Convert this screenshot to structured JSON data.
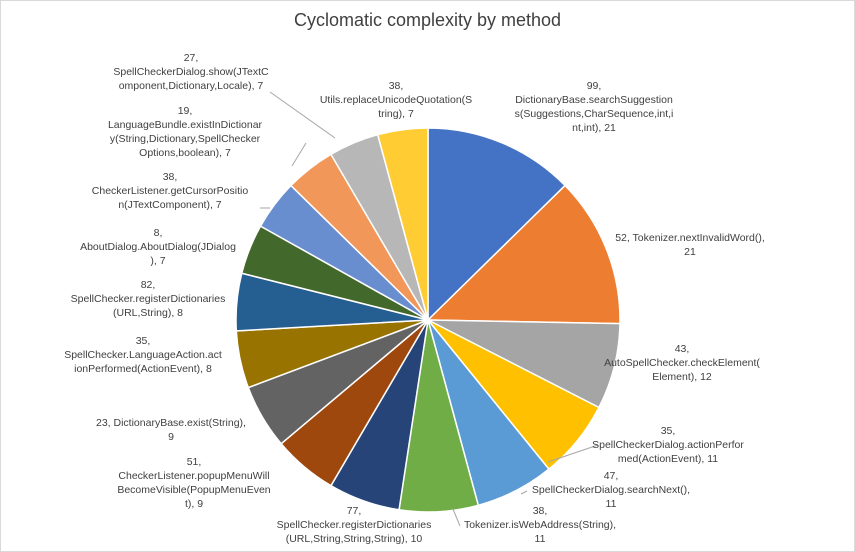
{
  "chart_data": {
    "type": "pie",
    "title": "Cyclomatic complexity by method",
    "slices": [
      {
        "label": "99, DictionaryBase.searchSuggestions(Suggestions,CharSequence,int,int,int), 21",
        "lines": [
          "99,",
          "DictionaryBase.searchSuggestion",
          "s(Suggestions,CharSequence,int,i",
          "nt,int), 21"
        ],
        "value": 21,
        "color": "#4472C4"
      },
      {
        "label": "52, Tokenizer.nextInvalidWord(), 21",
        "lines": [
          "52, Tokenizer.nextInvalidWord(),",
          "21"
        ],
        "value": 21,
        "color": "#ED7D31"
      },
      {
        "label": "43, AutoSpellChecker.checkElement(Element), 12",
        "lines": [
          "43,",
          "AutoSpellChecker.checkElement(",
          "Element), 12"
        ],
        "value": 12,
        "color": "#A5A5A5"
      },
      {
        "label": "35, SpellCheckerDialog.actionPerformed(ActionEvent), 11",
        "lines": [
          "35,",
          "SpellCheckerDialog.actionPerfor",
          "med(ActionEvent), 11"
        ],
        "value": 11,
        "color": "#FFC000"
      },
      {
        "label": "47, SpellCheckerDialog.searchNext(), 11",
        "lines": [
          "47,",
          "SpellCheckerDialog.searchNext(),",
          "11"
        ],
        "value": 11,
        "color": "#5B9BD5"
      },
      {
        "label": "38, Tokenizer.isWebAddress(String), 11",
        "lines": [
          "38,",
          "Tokenizer.isWebAddress(String),",
          "11"
        ],
        "value": 11,
        "color": "#70AD47"
      },
      {
        "label": "77, SpellChecker.registerDictionaries(URL,String,String,String), 10",
        "lines": [
          "77,",
          "SpellChecker.registerDictionaries",
          "(URL,String,String,String), 10"
        ],
        "value": 10,
        "color": "#264478"
      },
      {
        "label": "51, CheckerListener.popupMenuWillBecomeVisible(PopupMenuEvent), 9",
        "lines": [
          "51,",
          "CheckerListener.popupMenuWill",
          "BecomeVisible(PopupMenuEven",
          "t), 9"
        ],
        "value": 9,
        "color": "#9E480E"
      },
      {
        "label": "23, DictionaryBase.exist(String), 9",
        "lines": [
          "23, DictionaryBase.exist(String),",
          "9"
        ],
        "value": 9,
        "color": "#636363"
      },
      {
        "label": "35, SpellChecker.LanguageAction.actionPerformed(ActionEvent), 8",
        "lines": [
          "35,",
          "SpellChecker.LanguageAction.act",
          "ionPerformed(ActionEvent), 8"
        ],
        "value": 8,
        "color": "#997300"
      },
      {
        "label": "82, SpellChecker.registerDictionaries(URL,String), 8",
        "lines": [
          "82,",
          "SpellChecker.registerDictionaries",
          "(URL,String), 8"
        ],
        "value": 8,
        "color": "#255E91"
      },
      {
        "label": "8, AboutDialog.AboutDialog(JDialog), 7",
        "lines": [
          "8,",
          "AboutDialog.AboutDialog(JDialog",
          "), 7"
        ],
        "value": 7,
        "color": "#43682B"
      },
      {
        "label": "38, CheckerListener.getCursorPosition(JTextComponent), 7",
        "lines": [
          "38,",
          "CheckerListener.getCursorPositio",
          "n(JTextComponent), 7"
        ],
        "value": 7,
        "color": "#698ED0"
      },
      {
        "label": "19, LanguageBundle.existInDictionary(String,Dictionary,SpellCheckerOptions,boolean), 7",
        "lines": [
          "19,",
          "LanguageBundle.existInDictionar",
          "y(String,Dictionary,SpellChecker",
          "Options,boolean), 7"
        ],
        "value": 7,
        "color": "#F1975A"
      },
      {
        "label": "27, SpellCheckerDialog.show(JTextComponent,Dictionary,Locale), 7",
        "lines": [
          "27,",
          "SpellCheckerDialog.show(JTextC",
          "omponent,Dictionary,Locale), 7"
        ],
        "value": 7,
        "color": "#B7B7B7"
      },
      {
        "label": "38, Utils.replaceUnicodeQuotation(String), 7",
        "lines": [
          "38,",
          "Utils.replaceUnicodeQuotation(S",
          "tring), 7"
        ],
        "value": 7,
        "color": "#FFCD33"
      }
    ]
  }
}
